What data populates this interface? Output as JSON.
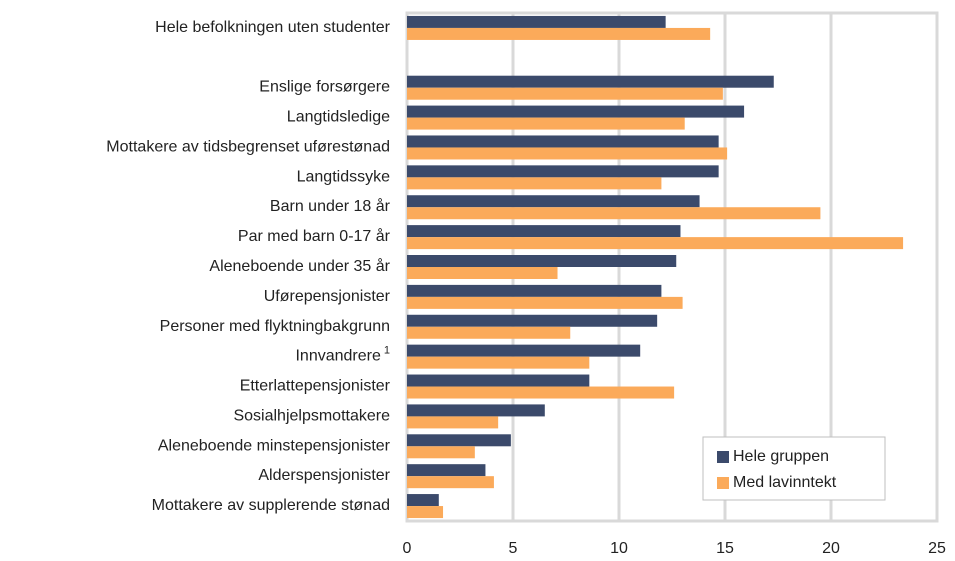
{
  "chart_data": {
    "type": "hbar",
    "categories": [
      "Hele befolkningen uten studenter",
      null,
      "Enslige forsørgere",
      "Langtidsledige",
      "Mottakere av tidsbegrenset uførestønad",
      "Langtidssyke",
      "Barn under 18 år",
      "Par med barn 0-17 år",
      "Aleneboende under 35 år",
      "Uførepensjonister",
      "Personer med flyktningbakgrunn",
      "Innvandrere",
      "Etterlattepensjonister",
      "Sosialhjelpsmottakere",
      "Aleneboende minstepensjonister",
      "Alderspensjonister",
      "Mottakere av supplerende stønad"
    ],
    "category_footnotes": [
      null,
      null,
      null,
      null,
      null,
      null,
      null,
      null,
      null,
      null,
      null,
      "1",
      null,
      null,
      null,
      null,
      null
    ],
    "series": [
      {
        "name": "Hele gruppen",
        "color": "#3b4a6b",
        "values": [
          12.2,
          null,
          17.3,
          15.9,
          14.7,
          14.7,
          13.8,
          12.9,
          12.7,
          12.0,
          11.8,
          11.0,
          8.6,
          6.5,
          4.9,
          3.7,
          1.5
        ]
      },
      {
        "name": "Med lavinntekt",
        "color": "#fbaa5a",
        "values": [
          14.3,
          null,
          14.9,
          13.1,
          15.1,
          12.0,
          19.5,
          23.4,
          7.1,
          13.0,
          7.7,
          8.6,
          12.6,
          4.3,
          3.2,
          4.1,
          1.7
        ]
      }
    ],
    "xlim": [
      0,
      25
    ],
    "xticks": [
      0,
      5,
      10,
      15,
      20,
      25
    ],
    "grid": true,
    "legend": "lower right"
  }
}
